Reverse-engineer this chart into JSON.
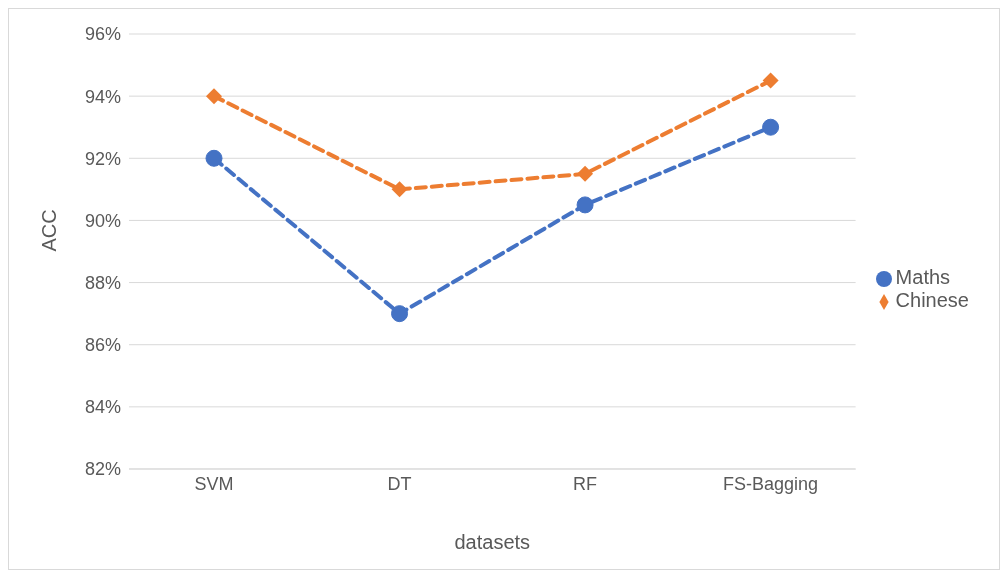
{
  "chart_data": {
    "type": "line",
    "xlabel": "datasets",
    "ylabel": "ACC",
    "categories": [
      "SVM",
      "DT",
      "RF",
      "FS-Bagging"
    ],
    "series": [
      {
        "name": "Maths",
        "color": "#4472c4",
        "values": [
          92,
          87,
          90.5,
          93
        ],
        "marker": "circle"
      },
      {
        "name": "Chinese",
        "color": "#ed7d31",
        "values": [
          94,
          91,
          91.5,
          94.5
        ],
        "marker": "diamond"
      }
    ],
    "ylim": [
      82,
      96
    ],
    "yticks": [
      {
        "value": 82,
        "label": "82%"
      },
      {
        "value": 84,
        "label": "84%"
      },
      {
        "value": 86,
        "label": "86%"
      },
      {
        "value": 88,
        "label": "88%"
      },
      {
        "value": 90,
        "label": "90%"
      },
      {
        "value": 92,
        "label": "92%"
      },
      {
        "value": 94,
        "label": "94%"
      },
      {
        "value": 96,
        "label": "96%"
      }
    ],
    "grid": "y",
    "legend": "right",
    "line_style": "dashed"
  }
}
